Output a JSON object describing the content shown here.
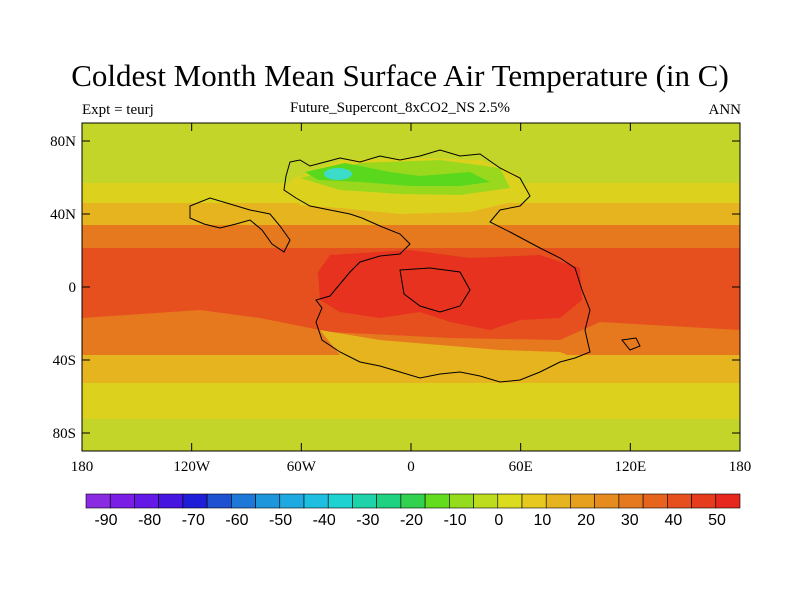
{
  "title": "Coldest Month Mean Surface Air Temperature (in C)",
  "left_label": "Expt = teurj",
  "center_label": "Future_Supercont_8xCO2_NS 2.5%",
  "right_label": "ANN",
  "lat_ticks": [
    "80N",
    "40N",
    "0",
    "40S",
    "80S"
  ],
  "lon_ticks": [
    "180",
    "120W",
    "60W",
    "0",
    "60E",
    "120E",
    "180"
  ],
  "colorbar": {
    "labels": [
      "-90",
      "-80",
      "-70",
      "-60",
      "-50",
      "-40",
      "-30",
      "-20",
      "-10",
      "0",
      "10",
      "20",
      "30",
      "40",
      "50"
    ],
    "colors": [
      "#8a2be2",
      "#7a1ee6",
      "#6419e6",
      "#4616e0",
      "#1e1ed8",
      "#1e50d2",
      "#1e78d8",
      "#1e96dc",
      "#1eaae0",
      "#1ebee0",
      "#1ed2d2",
      "#1ed2aa",
      "#1ed282",
      "#32d250",
      "#64dc1e",
      "#96dc1e",
      "#bedc1e",
      "#dcdc1e",
      "#e6c81e",
      "#e6b41e",
      "#e6a01e",
      "#e68c1e",
      "#e6781e",
      "#e6641e",
      "#e6501e",
      "#e63c1e",
      "#e6281e"
    ]
  },
  "map_colors": {
    "polar_band": "#c4d52a",
    "mid_band": "#dcd21e",
    "subtrop_band": "#e6b41e",
    "warm_band": "#e6781e",
    "hot_band": "#e6501e",
    "hottest": "#e6321e",
    "cold_core": "#5ad81e",
    "cool_land": "#9ad81e",
    "cyan_spot": "#3cdcc8"
  }
}
